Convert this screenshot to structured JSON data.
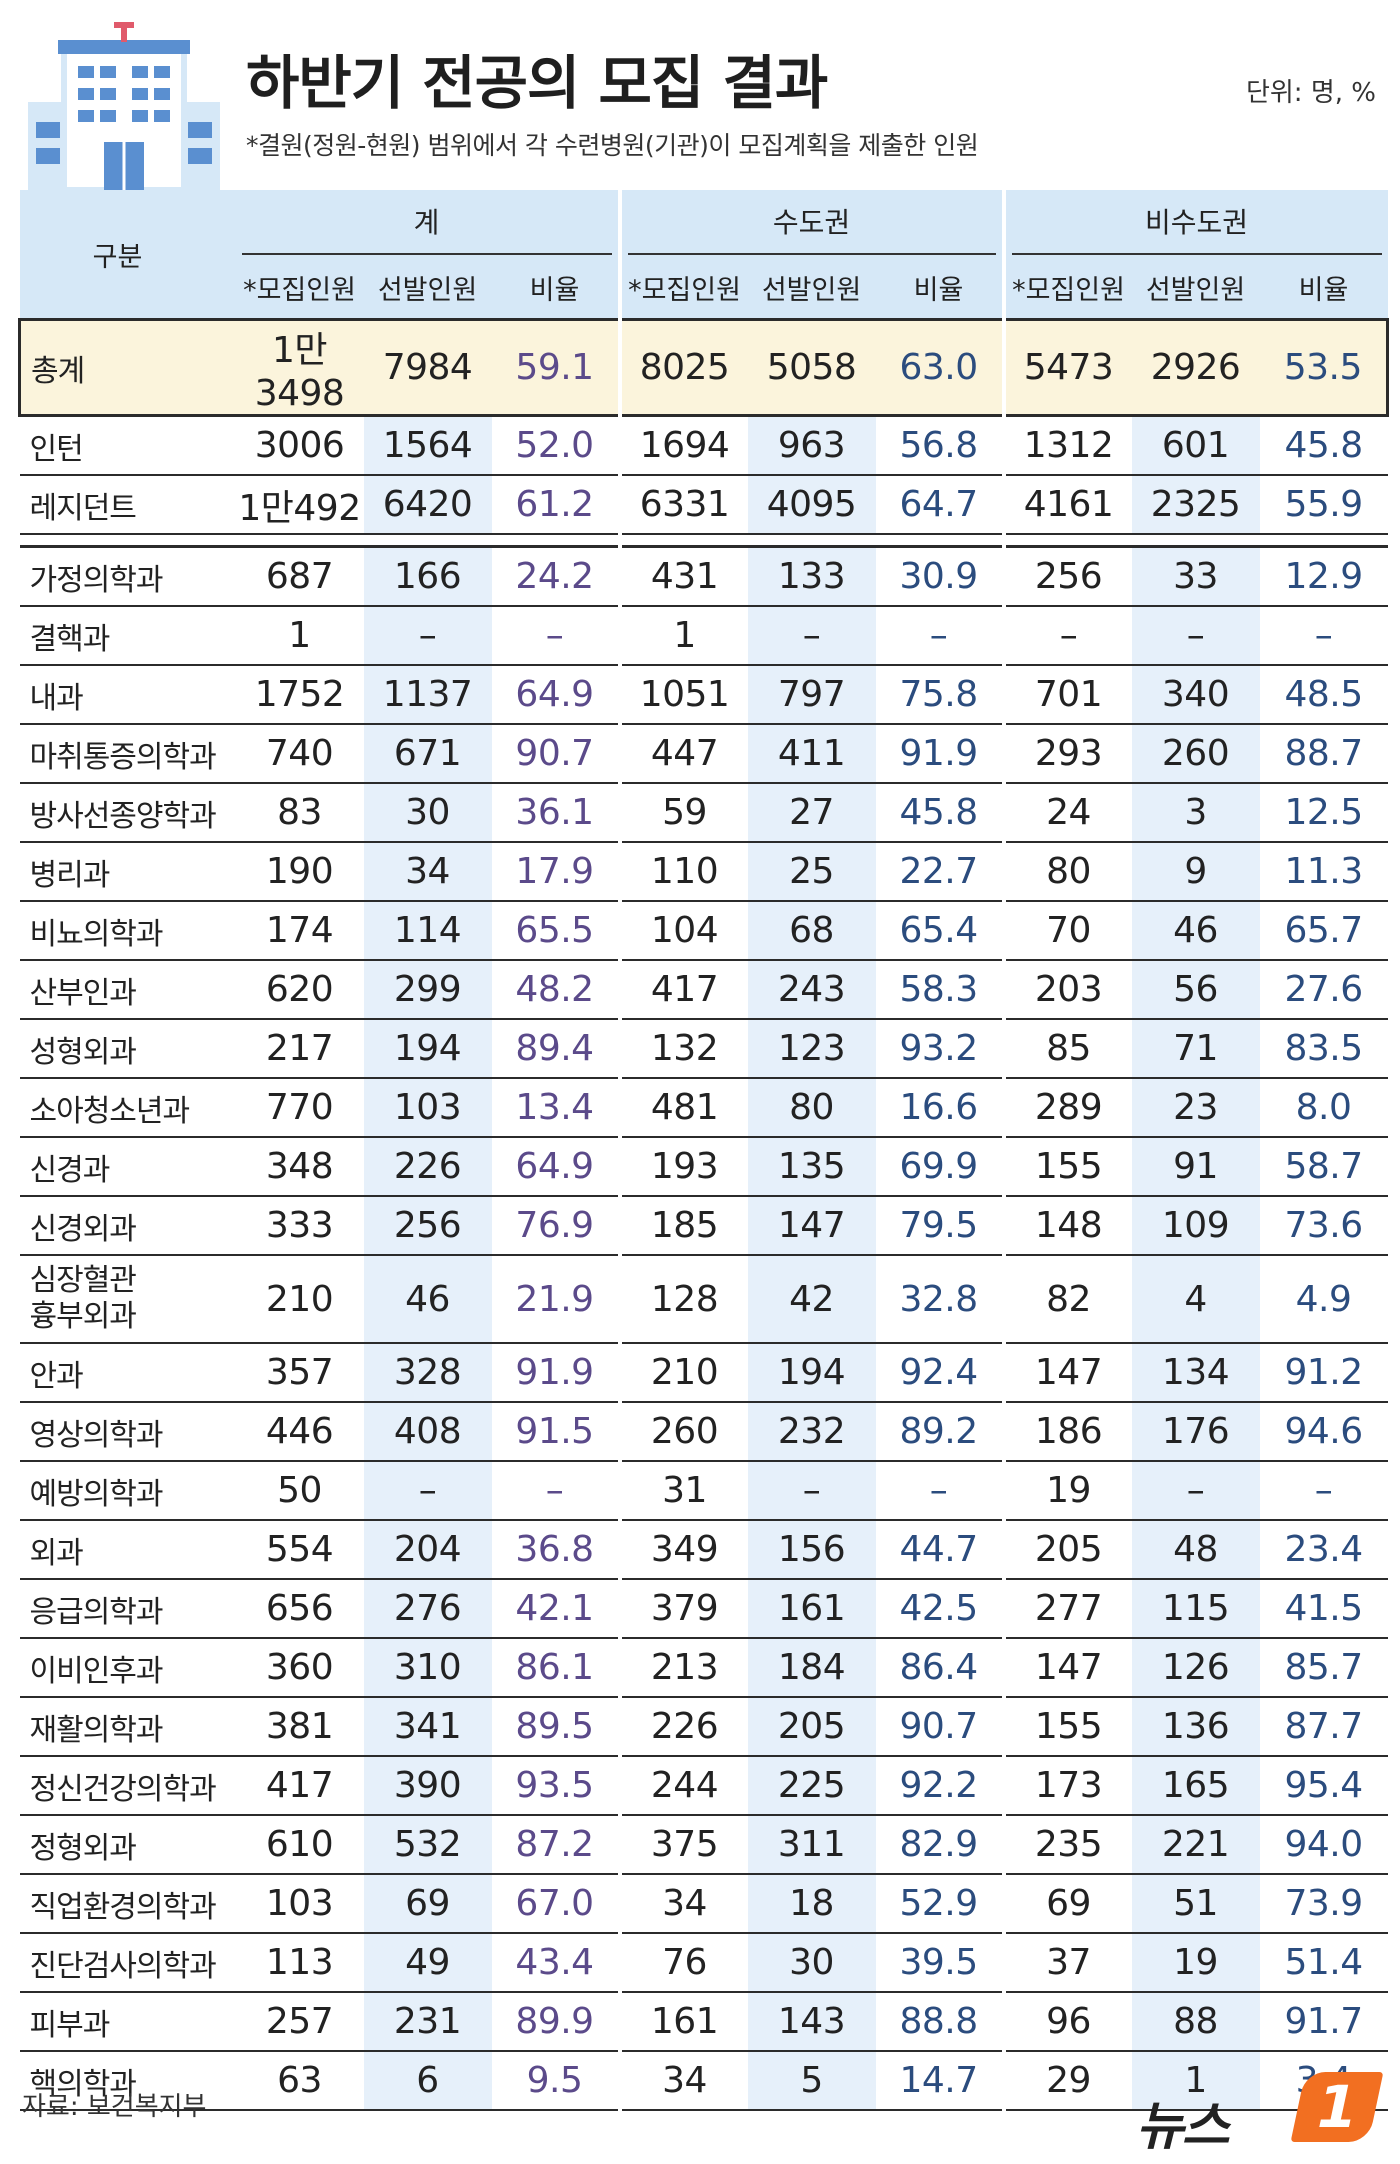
{
  "header": {
    "title": "하반기 전공의 모집 결과",
    "subtitle": "*결원(정원-현원) 범위에서 각 수련병원(기관)이 모집계획을 제출한 인원",
    "unit": "단위: 명, %"
  },
  "table": {
    "corner": "구분",
    "groups": [
      "계",
      "수도권",
      "비수도권"
    ],
    "subheaders": [
      "*모집인원",
      "선발인원",
      "비율"
    ],
    "rows": [
      {
        "name": "총계",
        "v": [
          "1만3498",
          "7984",
          "59.1",
          "8025",
          "5058",
          "63.0",
          "5473",
          "2926",
          "53.5"
        ]
      },
      {
        "name": "인턴",
        "v": [
          "3006",
          "1564",
          "52.0",
          "1694",
          "963",
          "56.8",
          "1312",
          "601",
          "45.8"
        ]
      },
      {
        "name": "레지던트",
        "v": [
          "1만492",
          "6420",
          "61.2",
          "6331",
          "4095",
          "64.7",
          "4161",
          "2325",
          "55.9"
        ]
      },
      {
        "name": "가정의학과",
        "v": [
          "687",
          "166",
          "24.2",
          "431",
          "133",
          "30.9",
          "256",
          "33",
          "12.9"
        ]
      },
      {
        "name": "결핵과",
        "v": [
          "1",
          "–",
          "–",
          "1",
          "–",
          "–",
          "–",
          "–",
          "–"
        ]
      },
      {
        "name": "내과",
        "v": [
          "1752",
          "1137",
          "64.9",
          "1051",
          "797",
          "75.8",
          "701",
          "340",
          "48.5"
        ]
      },
      {
        "name": "마취통증의학과",
        "v": [
          "740",
          "671",
          "90.7",
          "447",
          "411",
          "91.9",
          "293",
          "260",
          "88.7"
        ]
      },
      {
        "name": "방사선종양학과",
        "v": [
          "83",
          "30",
          "36.1",
          "59",
          "27",
          "45.8",
          "24",
          "3",
          "12.5"
        ]
      },
      {
        "name": "병리과",
        "v": [
          "190",
          "34",
          "17.9",
          "110",
          "25",
          "22.7",
          "80",
          "9",
          "11.3"
        ]
      },
      {
        "name": "비뇨의학과",
        "v": [
          "174",
          "114",
          "65.5",
          "104",
          "68",
          "65.4",
          "70",
          "46",
          "65.7"
        ]
      },
      {
        "name": "산부인과",
        "v": [
          "620",
          "299",
          "48.2",
          "417",
          "243",
          "58.3",
          "203",
          "56",
          "27.6"
        ]
      },
      {
        "name": "성형외과",
        "v": [
          "217",
          "194",
          "89.4",
          "132",
          "123",
          "93.2",
          "85",
          "71",
          "83.5"
        ]
      },
      {
        "name": "소아청소년과",
        "v": [
          "770",
          "103",
          "13.4",
          "481",
          "80",
          "16.6",
          "289",
          "23",
          "8.0"
        ]
      },
      {
        "name": "신경과",
        "v": [
          "348",
          "226",
          "64.9",
          "193",
          "135",
          "69.9",
          "155",
          "91",
          "58.7"
        ]
      },
      {
        "name": "신경외과",
        "v": [
          "333",
          "256",
          "76.9",
          "185",
          "147",
          "79.5",
          "148",
          "109",
          "73.6"
        ]
      },
      {
        "name": "심장혈관 흉부외과",
        "v": [
          "210",
          "46",
          "21.9",
          "128",
          "42",
          "32.8",
          "82",
          "4",
          "4.9"
        ]
      },
      {
        "name": "안과",
        "v": [
          "357",
          "328",
          "91.9",
          "210",
          "194",
          "92.4",
          "147",
          "134",
          "91.2"
        ]
      },
      {
        "name": "영상의학과",
        "v": [
          "446",
          "408",
          "91.5",
          "260",
          "232",
          "89.2",
          "186",
          "176",
          "94.6"
        ]
      },
      {
        "name": "예방의학과",
        "v": [
          "50",
          "–",
          "–",
          "31",
          "–",
          "–",
          "19",
          "–",
          "–"
        ]
      },
      {
        "name": "외과",
        "v": [
          "554",
          "204",
          "36.8",
          "349",
          "156",
          "44.7",
          "205",
          "48",
          "23.4"
        ]
      },
      {
        "name": "응급의학과",
        "v": [
          "656",
          "276",
          "42.1",
          "379",
          "161",
          "42.5",
          "277",
          "115",
          "41.5"
        ]
      },
      {
        "name": "이비인후과",
        "v": [
          "360",
          "310",
          "86.1",
          "213",
          "184",
          "86.4",
          "147",
          "126",
          "85.7"
        ]
      },
      {
        "name": "재활의학과",
        "v": [
          "381",
          "341",
          "89.5",
          "226",
          "205",
          "90.7",
          "155",
          "136",
          "87.7"
        ]
      },
      {
        "name": "정신건강의학과",
        "v": [
          "417",
          "390",
          "93.5",
          "244",
          "225",
          "92.2",
          "173",
          "165",
          "95.4"
        ]
      },
      {
        "name": "정형외과",
        "v": [
          "610",
          "532",
          "87.2",
          "375",
          "311",
          "82.9",
          "235",
          "221",
          "94.0"
        ]
      },
      {
        "name": "직업환경의학과",
        "v": [
          "103",
          "69",
          "67.0",
          "34",
          "18",
          "52.9",
          "69",
          "51",
          "73.9"
        ]
      },
      {
        "name": "진단검사의학과",
        "v": [
          "113",
          "49",
          "43.4",
          "76",
          "30",
          "39.5",
          "37",
          "19",
          "51.4"
        ]
      },
      {
        "name": "피부과",
        "v": [
          "257",
          "231",
          "89.9",
          "161",
          "143",
          "88.8",
          "96",
          "88",
          "91.7"
        ]
      },
      {
        "name": "핵의학과",
        "v": [
          "63",
          "6",
          "9.5",
          "34",
          "5",
          "14.7",
          "29",
          "1",
          "3.4"
        ]
      }
    ]
  },
  "footer": {
    "source": "자료: 보건복지부",
    "logo_text": "뉴스",
    "logo_badge": "1"
  },
  "colors": {
    "header_bg": "#d6e8f7",
    "shade_col": "#e6f0fa",
    "total_bg": "#fbf4dc",
    "rate_text": "#5b4a8a",
    "logo_orange": "#f26f21"
  },
  "icons": [
    "hospital-icon"
  ]
}
